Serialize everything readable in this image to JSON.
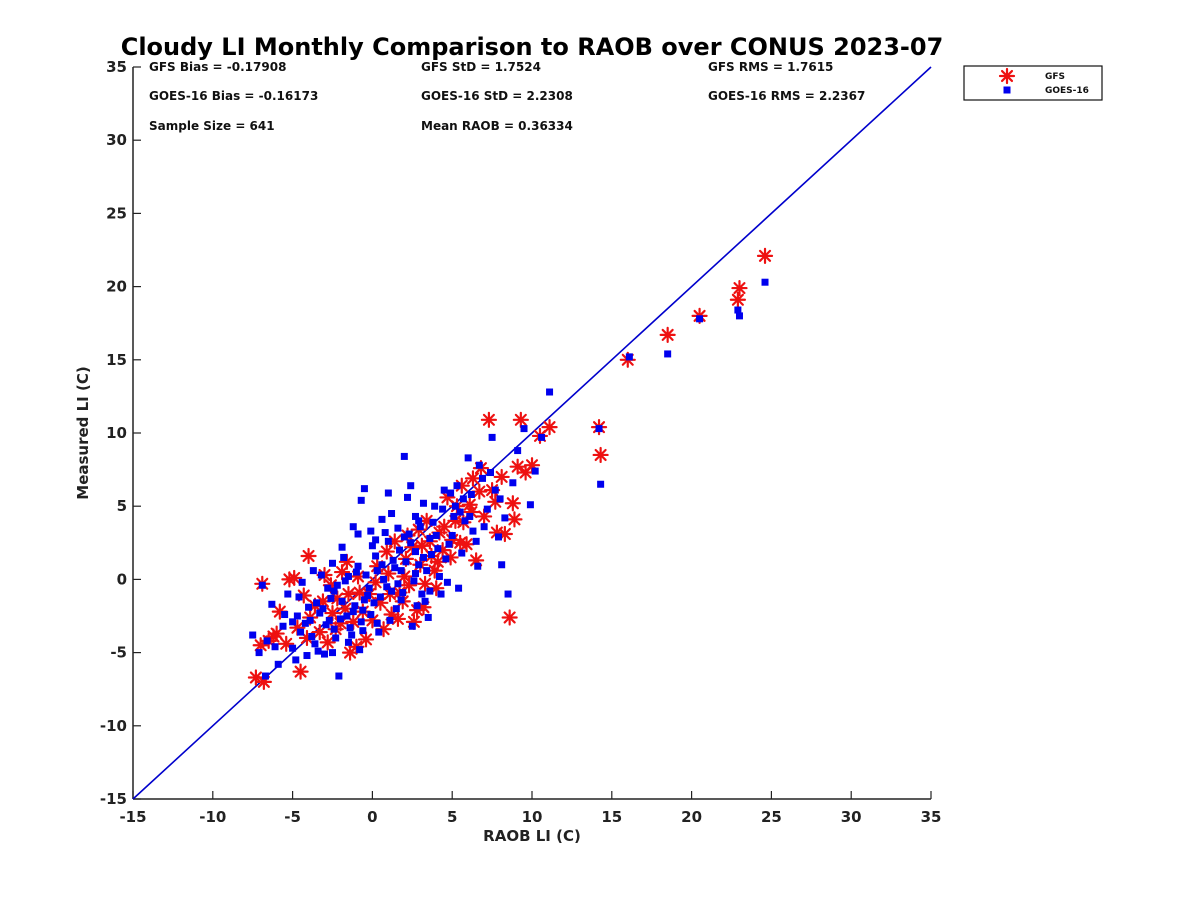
{
  "chart_data": {
    "type": "scatter",
    "title": "Cloudy LI Monthly Comparison to RAOB over CONUS 2023-07",
    "xlabel": "RAOB LI (C)",
    "ylabel": "Measured LI (C)",
    "xlim": [
      -15,
      35
    ],
    "ylim": [
      -15,
      35
    ],
    "xticks": [
      "-15",
      "-10",
      "-5",
      "0",
      "5",
      "10",
      "15",
      "20",
      "25",
      "30",
      "35"
    ],
    "yticks": [
      "-15",
      "-10",
      "-5",
      "0",
      "5",
      "10",
      "15",
      "20",
      "25",
      "30",
      "35"
    ],
    "grid": false,
    "legend_position": "outside-top-right",
    "reference_line": {
      "type": "one-to-one",
      "color": "#0000cc"
    },
    "stats": [
      "GFS Bias = -0.17908",
      "GFS StD = 1.7524",
      "GFS RMS = 1.7615",
      "GOES-16 Bias = -0.16173",
      "GOES-16 StD = 2.2308",
      "GOES-16 RMS = 2.2367",
      "Sample Size = 641",
      "Mean RAOB = 0.36334"
    ],
    "series": [
      {
        "name": "GFS",
        "marker": "asterisk",
        "color": "#ee1111",
        "points": [
          [
            -7.3,
            -6.7
          ],
          [
            -6.8,
            -7.0
          ],
          [
            -6.9,
            -0.3
          ],
          [
            -7.0,
            -4.5
          ],
          [
            -6.5,
            -4.2
          ],
          [
            -6.2,
            -3.9
          ],
          [
            -5.2,
            0.0
          ],
          [
            -4.9,
            0.1
          ],
          [
            -4.5,
            -6.3
          ],
          [
            -4.0,
            1.6
          ],
          [
            -3.6,
            -1.8
          ],
          [
            -3.0,
            0.3
          ],
          [
            -2.5,
            -2.3
          ],
          [
            -2.0,
            -3.0
          ],
          [
            -1.6,
            1.2
          ],
          [
            -1.4,
            -5.0
          ],
          [
            -1.0,
            -4.6
          ],
          [
            -0.6,
            -2.2
          ],
          [
            -0.2,
            -1.0
          ],
          [
            0.3,
            0.9
          ],
          [
            0.7,
            -3.4
          ],
          [
            1.2,
            -2.4
          ],
          [
            1.7,
            -0.9
          ],
          [
            2.1,
            1.4
          ],
          [
            2.5,
            2.2
          ],
          [
            2.6,
            -2.9
          ],
          [
            3.0,
            1.0
          ],
          [
            3.2,
            -1.9
          ],
          [
            3.6,
            2.6
          ],
          [
            4.0,
            -0.6
          ],
          [
            4.2,
            3.2
          ],
          [
            4.7,
            5.6
          ],
          [
            5.2,
            4.0
          ],
          [
            5.6,
            6.4
          ],
          [
            6.1,
            5.1
          ],
          [
            6.5,
            1.3
          ],
          [
            6.8,
            7.6
          ],
          [
            7.3,
            10.9
          ],
          [
            7.5,
            6.1
          ],
          [
            7.8,
            3.2
          ],
          [
            8.3,
            3.1
          ],
          [
            8.6,
            -2.6
          ],
          [
            8.9,
            4.1
          ],
          [
            9.3,
            10.9
          ],
          [
            9.6,
            7.3
          ],
          [
            10.0,
            7.8
          ],
          [
            10.5,
            9.8
          ],
          [
            11.1,
            10.4
          ],
          [
            14.2,
            10.4
          ],
          [
            14.3,
            8.5
          ],
          [
            16.0,
            15.0
          ],
          [
            18.5,
            16.7
          ],
          [
            20.5,
            18.0
          ],
          [
            22.9,
            19.1
          ],
          [
            23.0,
            19.9
          ],
          [
            24.6,
            22.1
          ],
          [
            -5.8,
            -2.2
          ],
          [
            -4.3,
            -1.1
          ],
          [
            -3.3,
            -3.6
          ],
          [
            -2.8,
            -4.3
          ],
          [
            -1.9,
            0.5
          ],
          [
            -0.9,
            0.2
          ],
          [
            0.0,
            -2.8
          ],
          [
            0.9,
            1.9
          ],
          [
            1.4,
            2.6
          ],
          [
            1.9,
            -1.5
          ],
          [
            2.9,
            3.4
          ],
          [
            3.4,
            4.0
          ],
          [
            3.9,
            0.6
          ],
          [
            4.4,
            2.0
          ],
          [
            4.9,
            1.5
          ],
          [
            5.3,
            5.0
          ],
          [
            5.9,
            2.4
          ],
          [
            6.3,
            6.9
          ],
          [
            7.0,
            4.3
          ],
          [
            7.7,
            5.3
          ],
          [
            8.1,
            7.0
          ],
          [
            8.8,
            5.2
          ],
          [
            9.1,
            7.7
          ],
          [
            2.3,
            -0.4
          ],
          [
            -2.2,
            -1.3
          ],
          [
            -3.9,
            -2.6
          ],
          [
            -4.7,
            -3.3
          ],
          [
            -5.4,
            -4.4
          ],
          [
            -6.0,
            -3.7
          ],
          [
            -1.2,
            -2.9
          ],
          [
            -0.4,
            -4.1
          ],
          [
            0.5,
            -1.6
          ],
          [
            1.0,
            0.4
          ],
          [
            1.6,
            -2.7
          ],
          [
            2.0,
            0.2
          ],
          [
            2.8,
            -2.1
          ],
          [
            3.3,
            -0.3
          ],
          [
            3.7,
            1.6
          ],
          [
            4.5,
            3.6
          ],
          [
            5.0,
            2.7
          ],
          [
            5.7,
            3.9
          ],
          [
            6.2,
            4.6
          ],
          [
            6.7,
            6.0
          ],
          [
            -2.6,
            -0.4
          ],
          [
            -1.7,
            -2.0
          ],
          [
            -0.8,
            -0.9
          ],
          [
            0.2,
            -0.2
          ],
          [
            1.1,
            -1.0
          ],
          [
            2.2,
            3.0
          ],
          [
            3.1,
            2.3
          ],
          [
            4.1,
            1.2
          ],
          [
            5.5,
            2.5
          ],
          [
            -3.1,
            -1.5
          ],
          [
            -4.1,
            -4.0
          ],
          [
            -2.3,
            -3.4
          ],
          [
            -1.5,
            -1.0
          ]
        ]
      },
      {
        "name": "GOES-16",
        "marker": "square",
        "color": "#0000ee",
        "points": [
          [
            -7.5,
            -3.8
          ],
          [
            -7.1,
            -5.0
          ],
          [
            -6.7,
            -6.6
          ],
          [
            -6.6,
            -4.2
          ],
          [
            -6.9,
            -0.4
          ],
          [
            -6.3,
            -1.7
          ],
          [
            -5.9,
            -5.8
          ],
          [
            -5.6,
            -3.2
          ],
          [
            -5.3,
            -1.0
          ],
          [
            -5.0,
            -4.7
          ],
          [
            -4.7,
            -2.5
          ],
          [
            -4.4,
            -0.2
          ],
          [
            -4.1,
            -5.2
          ],
          [
            -3.8,
            -3.9
          ],
          [
            -3.5,
            -1.6
          ],
          [
            -3.2,
            0.3
          ],
          [
            -3.0,
            -5.1
          ],
          [
            -2.7,
            -2.8
          ],
          [
            -2.4,
            -0.8
          ],
          [
            -2.1,
            -6.6
          ],
          [
            -1.8,
            1.5
          ],
          [
            -1.5,
            -4.3
          ],
          [
            -1.2,
            -2.2
          ],
          [
            -0.9,
            0.9
          ],
          [
            -0.6,
            -3.5
          ],
          [
            -0.5,
            6.2
          ],
          [
            -0.7,
            5.4
          ],
          [
            -0.3,
            -1.1
          ],
          [
            0.0,
            2.3
          ],
          [
            0.3,
            -3.0
          ],
          [
            0.6,
            1.0
          ],
          [
            0.9,
            -0.5
          ],
          [
            1.2,
            4.5
          ],
          [
            1.5,
            -2.0
          ],
          [
            1.8,
            0.6
          ],
          [
            2.0,
            8.4
          ],
          [
            2.2,
            5.6
          ],
          [
            2.5,
            -3.2
          ],
          [
            2.7,
            1.9
          ],
          [
            3.0,
            3.6
          ],
          [
            3.3,
            -1.5
          ],
          [
            3.6,
            2.8
          ],
          [
            3.9,
            5.0
          ],
          [
            4.2,
            0.2
          ],
          [
            4.5,
            6.1
          ],
          [
            4.8,
            2.4
          ],
          [
            5.1,
            4.3
          ],
          [
            5.4,
            -0.6
          ],
          [
            5.7,
            5.5
          ],
          [
            6.0,
            8.3
          ],
          [
            6.3,
            3.3
          ],
          [
            6.6,
            0.9
          ],
          [
            6.9,
            6.9
          ],
          [
            7.2,
            4.8
          ],
          [
            7.5,
            9.7
          ],
          [
            7.9,
            2.9
          ],
          [
            8.1,
            1.0
          ],
          [
            8.5,
            -1.0
          ],
          [
            8.8,
            6.6
          ],
          [
            9.1,
            8.8
          ],
          [
            9.5,
            10.3
          ],
          [
            9.9,
            5.1
          ],
          [
            10.2,
            7.4
          ],
          [
            10.6,
            9.7
          ],
          [
            11.1,
            12.8
          ],
          [
            14.2,
            10.3
          ],
          [
            14.3,
            6.5
          ],
          [
            16.1,
            15.2
          ],
          [
            18.5,
            15.4
          ],
          [
            20.5,
            17.8
          ],
          [
            22.9,
            18.4
          ],
          [
            23.0,
            18.0
          ],
          [
            24.6,
            20.3
          ],
          [
            -5.0,
            -2.9
          ],
          [
            -4.5,
            -3.6
          ],
          [
            -4.0,
            -1.9
          ],
          [
            -3.6,
            -4.4
          ],
          [
            -3.3,
            -2.3
          ],
          [
            -2.9,
            -3.1
          ],
          [
            -2.6,
            -1.3
          ],
          [
            -2.3,
            -4.0
          ],
          [
            -2.0,
            -2.7
          ],
          [
            -1.7,
            -0.1
          ],
          [
            -1.4,
            -3.3
          ],
          [
            -1.1,
            -1.8
          ],
          [
            -0.8,
            -4.8
          ],
          [
            -0.4,
            0.3
          ],
          [
            -0.1,
            -2.4
          ],
          [
            0.2,
            1.6
          ],
          [
            0.5,
            -1.2
          ],
          [
            0.8,
            3.2
          ],
          [
            1.1,
            -2.8
          ],
          [
            1.4,
            0.8
          ],
          [
            1.7,
            2.0
          ],
          [
            1.9,
            -0.9
          ],
          [
            2.3,
            3.1
          ],
          [
            2.6,
            -0.1
          ],
          [
            2.9,
            4.0
          ],
          [
            3.2,
            1.5
          ],
          [
            3.5,
            -2.6
          ],
          [
            3.8,
            3.9
          ],
          [
            4.1,
            2.1
          ],
          [
            4.4,
            4.8
          ],
          [
            4.7,
            -0.2
          ],
          [
            5.0,
            3.0
          ],
          [
            5.3,
            6.4
          ],
          [
            5.6,
            1.8
          ],
          [
            6.2,
            5.8
          ],
          [
            6.5,
            2.6
          ],
          [
            7.0,
            3.6
          ],
          [
            7.4,
            7.3
          ],
          [
            8.0,
            5.5
          ],
          [
            -6.1,
            -4.6
          ],
          [
            -5.5,
            -2.4
          ],
          [
            -4.8,
            -5.5
          ],
          [
            -4.2,
            -3.0
          ],
          [
            -3.7,
            0.6
          ],
          [
            -3.1,
            -2.0
          ],
          [
            -2.5,
            -5.0
          ],
          [
            -1.9,
            -1.5
          ],
          [
            -1.3,
            -3.8
          ],
          [
            -0.7,
            -2.9
          ],
          [
            -0.2,
            -0.6
          ],
          [
            0.4,
            -3.6
          ],
          [
            1.0,
            2.6
          ],
          [
            1.6,
            -0.3
          ],
          [
            2.1,
            1.2
          ],
          [
            2.8,
            -1.8
          ],
          [
            3.4,
            0.6
          ],
          [
            4.0,
            3.0
          ],
          [
            4.6,
            1.4
          ],
          [
            5.2,
            5.0
          ],
          [
            5.8,
            4.0
          ],
          [
            6.7,
            7.8
          ],
          [
            7.7,
            6.1
          ],
          [
            8.3,
            4.2
          ],
          [
            -2.2,
            -0.4
          ],
          [
            -1.0,
            0.5
          ],
          [
            0.1,
            -1.6
          ],
          [
            1.3,
            1.3
          ],
          [
            2.4,
            2.5
          ],
          [
            3.1,
            -1.0
          ],
          [
            -3.4,
            -4.9
          ],
          [
            -2.8,
            -0.6
          ],
          [
            -1.6,
            -2.5
          ],
          [
            -0.5,
            -1.4
          ],
          [
            0.7,
            0.0
          ],
          [
            1.8,
            -1.4
          ],
          [
            2.7,
            0.4
          ],
          [
            3.7,
            1.7
          ],
          [
            4.3,
            -1.0
          ],
          [
            5.5,
            4.6
          ],
          [
            -4.6,
            -1.2
          ],
          [
            -3.9,
            -2.8
          ],
          [
            -2.4,
            -3.4
          ],
          [
            -1.5,
            0.2
          ],
          [
            -0.6,
            -2.1
          ],
          [
            0.3,
            0.6
          ],
          [
            1.2,
            -0.8
          ],
          [
            2.0,
            2.9
          ],
          [
            2.9,
            1.0
          ],
          [
            3.6,
            -0.8
          ],
          [
            4.9,
            5.9
          ],
          [
            6.1,
            4.3
          ],
          [
            -0.9,
            3.1
          ],
          [
            0.2,
            2.7
          ],
          [
            1.0,
            5.9
          ],
          [
            1.6,
            3.5
          ],
          [
            2.4,
            6.4
          ],
          [
            3.2,
            5.2
          ],
          [
            -1.9,
            2.2
          ],
          [
            -1.2,
            3.6
          ],
          [
            0.6,
            4.1
          ],
          [
            2.7,
            4.3
          ],
          [
            -2.5,
            1.1
          ],
          [
            -0.1,
            3.3
          ]
        ]
      }
    ]
  }
}
